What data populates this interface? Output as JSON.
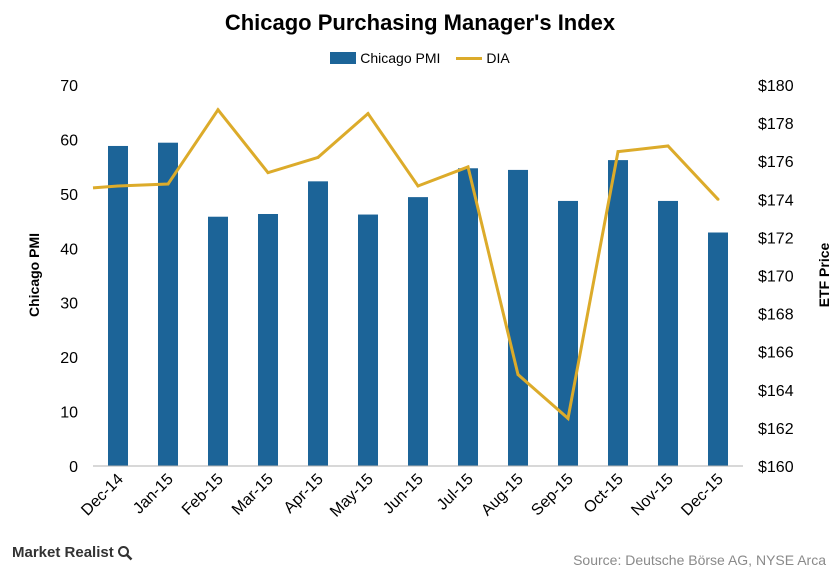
{
  "chart_data": {
    "type": "bar",
    "title": "Chicago Purchasing Manager's Index",
    "categories": [
      "Dec-14",
      "Jan-15",
      "Feb-15",
      "Mar-15",
      "Apr-15",
      "May-15",
      "Jun-15",
      "Jul-15",
      "Aug-15",
      "Sep-15",
      "Oct-15",
      "Nov-15",
      "Dec-15"
    ],
    "series": [
      {
        "name": "Chicago PMI",
        "type": "bar",
        "axis": "left",
        "color": "#1c6498",
        "values": [
          58.8,
          59.4,
          45.8,
          46.3,
          52.3,
          46.2,
          49.4,
          54.7,
          54.4,
          48.7,
          56.2,
          48.7,
          42.9
        ]
      },
      {
        "name": "DIA",
        "type": "line",
        "axis": "right",
        "color": "#dcab2a",
        "values": [
          174.7,
          174.8,
          178.7,
          175.4,
          176.2,
          178.5,
          174.7,
          175.7,
          164.8,
          162.5,
          176.5,
          176.8,
          174.0
        ],
        "start_value": 174.6
      }
    ],
    "ylabel": "Chicago PMI",
    "ylim": [
      0,
      70
    ],
    "yticks": [
      "0",
      "10",
      "20",
      "30",
      "40",
      "50",
      "60",
      "70"
    ],
    "y2label": "ETF Price",
    "y2lim": [
      160,
      180
    ],
    "y2ticks": [
      "$160",
      "$162",
      "$164",
      "$166",
      "$168",
      "$170",
      "$172",
      "$174",
      "$176",
      "$178",
      "$180"
    ],
    "legend": "top-center",
    "grid": false
  },
  "footer": {
    "brand": "Market Realist",
    "source": "Source: Deutsche Börse AG, NYSE Arca"
  }
}
